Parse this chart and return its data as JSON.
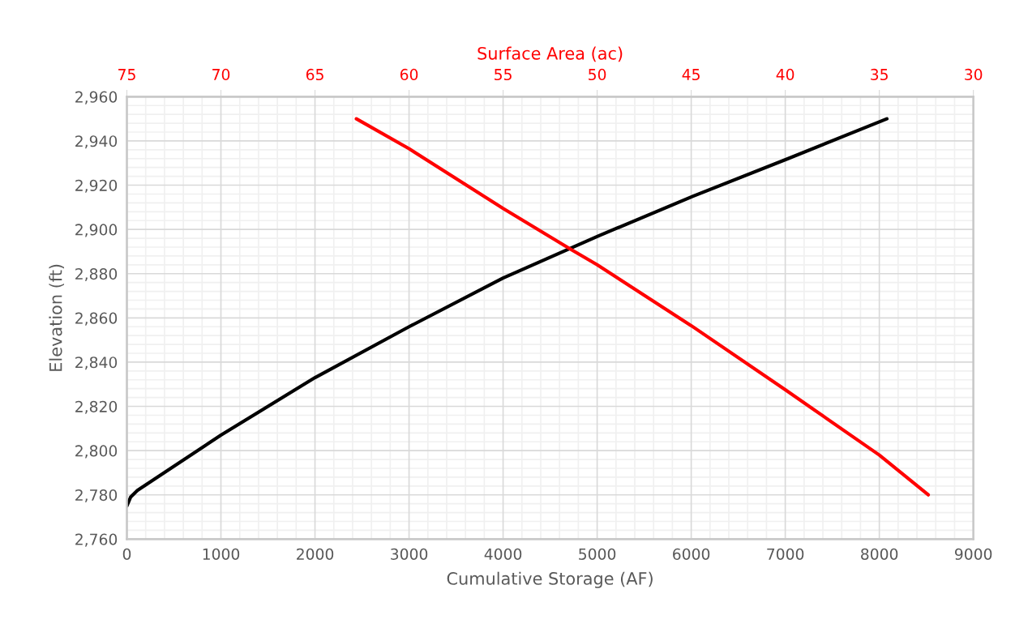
{
  "chart_data": {
    "type": "line",
    "xlabel": "Cumulative Storage (AF)",
    "ylabel": "Elevation (ft)",
    "x2label": "Surface Area (ac)",
    "xlim": [
      0,
      9000
    ],
    "xticks": [
      0,
      1000,
      2000,
      3000,
      4000,
      5000,
      6000,
      7000,
      8000,
      9000
    ],
    "x2lim": [
      75,
      30
    ],
    "x2ticks": [
      75,
      70,
      65,
      60,
      55,
      50,
      45,
      40,
      35,
      30
    ],
    "ylim": [
      2760,
      2960
    ],
    "yticks": [
      {
        "value": 2760,
        "label": "2,760"
      },
      {
        "value": 2780,
        "label": "2,780"
      },
      {
        "value": 2800,
        "label": "2,800"
      },
      {
        "value": 2820,
        "label": "2,820"
      },
      {
        "value": 2840,
        "label": "2,840"
      },
      {
        "value": 2860,
        "label": "2,860"
      },
      {
        "value": 2880,
        "label": "2,880"
      },
      {
        "value": 2900,
        "label": "2,900"
      },
      {
        "value": 2920,
        "label": "2,920"
      },
      {
        "value": 2940,
        "label": "2,940"
      },
      {
        "value": 2960,
        "label": "2,960"
      }
    ],
    "grid": true,
    "marker": "none",
    "line_style": "solid",
    "series": [
      {
        "color": "#000000",
        "x": [
          0,
          40,
          112,
          1000,
          2000,
          3000,
          4000,
          5010,
          6020,
          7030,
          8080
        ],
        "values": [
          2775,
          2779,
          2782,
          2807,
          2833,
          2856,
          2878,
          2897,
          2915,
          2932,
          2950
        ]
      },
      {
        "color": "#ff0000",
        "axis": "x2",
        "x": [
          62.8,
          60,
          55,
          51.4,
          50,
          45,
          40,
          35,
          32.4
        ],
        "values": [
          2950,
          2936.5,
          2909.5,
          2891,
          2884,
          2856.5,
          2827.5,
          2798,
          2780
        ]
      }
    ]
  }
}
